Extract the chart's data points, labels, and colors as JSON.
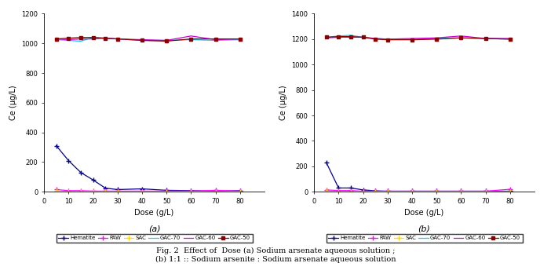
{
  "dose": [
    5,
    10,
    15,
    20,
    25,
    30,
    40,
    50,
    60,
    70,
    80
  ],
  "chart_a": {
    "Hematite": [
      310,
      210,
      130,
      80,
      25,
      15,
      20,
      10,
      8,
      5,
      8
    ],
    "PAW": [
      15,
      8,
      8,
      5,
      5,
      5,
      5,
      5,
      5,
      10,
      5
    ],
    "SAC": [
      5,
      2,
      2,
      2,
      2,
      2,
      2,
      2,
      2,
      2,
      2
    ],
    "GAC-70": [
      1025,
      1020,
      1015,
      1040,
      1035,
      1030,
      1020,
      1020,
      1025,
      1020,
      1025
    ],
    "GAC-60": [
      1030,
      1025,
      1030,
      1030,
      1035,
      1030,
      1025,
      1020,
      1050,
      1025,
      1030
    ],
    "GAC-50": [
      1030,
      1035,
      1040,
      1040,
      1035,
      1030,
      1020,
      1015,
      1030,
      1030,
      1030
    ]
  },
  "chart_b": {
    "Hematite": [
      230,
      30,
      30,
      15,
      8,
      5,
      5,
      5,
      5,
      5,
      5
    ],
    "PAW": [
      15,
      10,
      10,
      5,
      5,
      5,
      5,
      5,
      5,
      5,
      20
    ],
    "SAC": [
      5,
      2,
      2,
      2,
      2,
      2,
      2,
      2,
      2,
      2,
      2
    ],
    "GAC-70": [
      1215,
      1225,
      1230,
      1215,
      1205,
      1200,
      1200,
      1205,
      1210,
      1205,
      1200
    ],
    "GAC-60": [
      1210,
      1215,
      1215,
      1215,
      1205,
      1200,
      1205,
      1210,
      1225,
      1205,
      1205
    ],
    "GAC-50": [
      1215,
      1220,
      1220,
      1215,
      1200,
      1195,
      1195,
      1200,
      1210,
      1205,
      1200
    ]
  },
  "colors": {
    "Hematite": "#00008B",
    "PAW": "#FF00FF",
    "SAC": "#FFD700",
    "GAC-70": "#00CCFF",
    "GAC-60": "#CC00CC",
    "GAC-50": "#8B0000"
  },
  "markers": {
    "Hematite": "+",
    "PAW": "+",
    "SAC": "+",
    "GAC-70": "None",
    "GAC-60": "None",
    "GAC-50": "s"
  },
  "ylabel_a": "Ce (µg/L)",
  "ylabel_b": "Ce (µg/L)",
  "xlabel": "Dose (g/L)",
  "ylim_a": [
    0,
    1200
  ],
  "ylim_b": [
    0,
    1400
  ],
  "yticks_a": [
    0,
    200,
    400,
    600,
    800,
    1000,
    1200
  ],
  "yticks_b": [
    0,
    200,
    400,
    600,
    800,
    1000,
    1200,
    1400
  ],
  "xlim": [
    0,
    90
  ],
  "xticks": [
    0,
    10,
    20,
    30,
    40,
    50,
    60,
    70,
    80
  ],
  "label_a": "(a)",
  "label_b": "(b)",
  "caption_line1": "Fig. 2  Effect of  Dose (a) Sodium arsenate aqueous solution ;",
  "caption_line2": "(b) 1:1 :: Sodium arsenite : Sodium arsenate aqueous solution",
  "legend_labels": [
    "Hematite",
    "PAW",
    "SAC",
    "GAC-70",
    "GAC-60",
    "GAC-50"
  ]
}
